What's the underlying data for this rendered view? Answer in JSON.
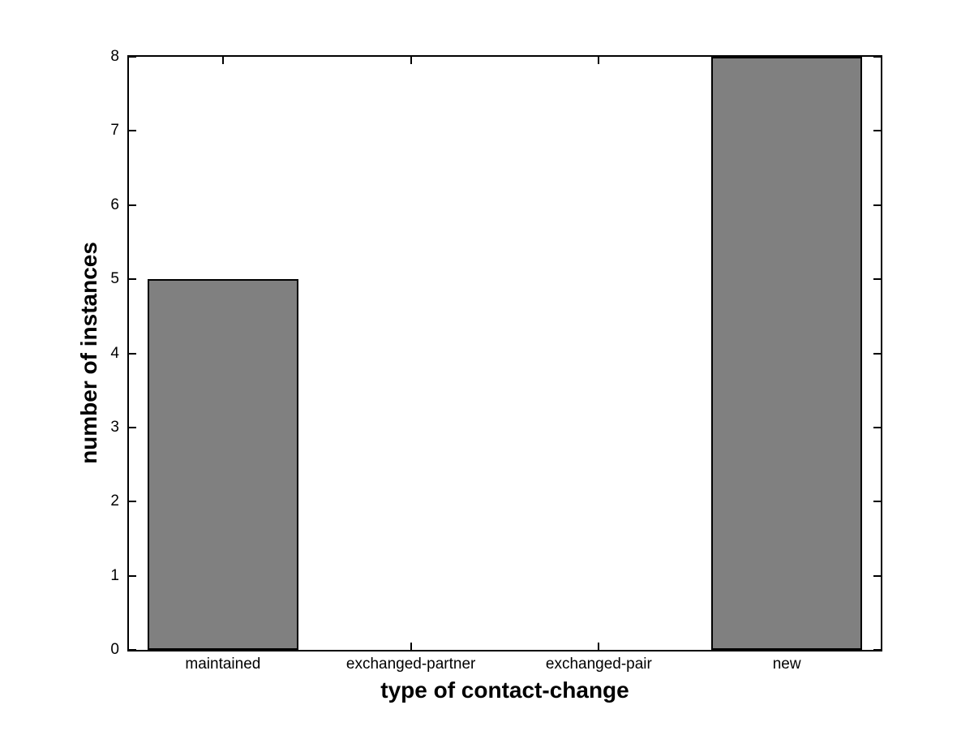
{
  "figure": {
    "background": "#ffffff",
    "axis_color": "#000000",
    "text_color": "#000000"
  },
  "chart_data": {
    "type": "bar",
    "categories": [
      "maintained",
      "exchanged-partner",
      "exchanged-pair",
      "new"
    ],
    "values": [
      5,
      0,
      0,
      8
    ],
    "xlabel": "type of contact-change",
    "ylabel": "number of instances",
    "xlim": [
      0.5,
      4.5
    ],
    "ylim": [
      0,
      8
    ],
    "yticks": [
      0,
      1,
      2,
      3,
      4,
      5,
      6,
      7,
      8
    ],
    "bar_color": "#808080",
    "bar_edge_color": "#000000",
    "bar_width_fraction": 0.8,
    "grid": false,
    "legend": "none",
    "tick_direction": "in"
  }
}
